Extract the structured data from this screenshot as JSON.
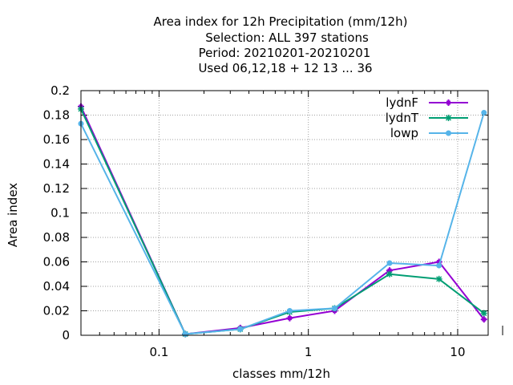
{
  "chart_data": {
    "type": "line",
    "title_lines": [
      "Area index  for 12h Precipitation (mm/12h)",
      "Selection: ALL     397 stations",
      "Period: 20210201-20210201",
      "Used  06,12,18  + 12 13 ... 36"
    ],
    "xlabel": "classes mm/12h",
    "ylabel": "Area index",
    "xscale": "log",
    "xlim": [
      0.03,
      16
    ],
    "ylim": [
      0,
      0.2
    ],
    "yticks": [
      0,
      0.02,
      0.04,
      0.06,
      0.08,
      0.1,
      0.12,
      0.14,
      0.16,
      0.18,
      0.2
    ],
    "ytick_labels": [
      "0",
      "0.02",
      "0.04",
      "0.06",
      "0.08",
      "0.1",
      "0.12",
      "0.14",
      "0.16",
      "0.18",
      "0.2"
    ],
    "xticks": [
      0.1,
      1,
      10
    ],
    "xtick_labels": [
      "0.1",
      "1",
      "10"
    ],
    "grid": true,
    "legend_position": "top-right",
    "x": [
      0.03,
      0.15,
      0.35,
      0.75,
      1.5,
      3.5,
      7.5,
      15
    ],
    "series": [
      {
        "name": "lydnF",
        "color": "#9400d3",
        "marker": "plus",
        "values": [
          0.187,
          0.001,
          0.006,
          0.014,
          0.02,
          0.053,
          0.06,
          0.013
        ]
      },
      {
        "name": "lydnT",
        "color": "#009e73",
        "marker": "star",
        "values": [
          0.185,
          0.001,
          0.005,
          0.019,
          0.022,
          0.05,
          0.046,
          0.018
        ]
      },
      {
        "name": "lowp",
        "color": "#56b4e9",
        "marker": "circle",
        "values": [
          0.173,
          0.001,
          0.005,
          0.02,
          0.022,
          0.059,
          0.057,
          0.182
        ]
      }
    ]
  }
}
